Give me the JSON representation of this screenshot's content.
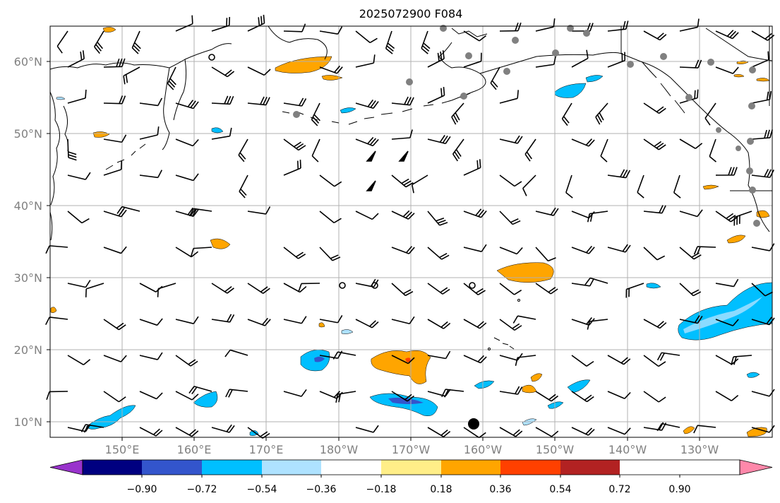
{
  "title": "2025072900 F084",
  "map": {
    "lat_labels": [
      "60°N",
      "50°N",
      "40°N",
      "30°N",
      "20°N",
      "10°N"
    ],
    "lon_labels": [
      "150°E",
      "160°E",
      "170°E",
      "180°W",
      "170°W",
      "160°W",
      "150°W",
      "140°W",
      "130°W"
    ],
    "extent": {
      "lon_min": 140,
      "lon_max": 240,
      "lat_min": 8,
      "lat_max": 65
    }
  },
  "colorbar": {
    "ticks": [
      "−0.90",
      "−0.72",
      "−0.54",
      "−0.36",
      "−0.18",
      "0.18",
      "0.36",
      "0.54",
      "0.72",
      "0.90"
    ],
    "colors": [
      "#9933cc",
      "#000080",
      "#3355cc",
      "#00bfff",
      "#aee2ff",
      "#ffffff",
      "#ffee88",
      "#ffa500",
      "#ff4000",
      "#b22222",
      "#ff88aa"
    ],
    "extend": "both"
  },
  "colors": {
    "grid": "#b0b0b0",
    "coast": "#000000",
    "label": "#808080"
  }
}
